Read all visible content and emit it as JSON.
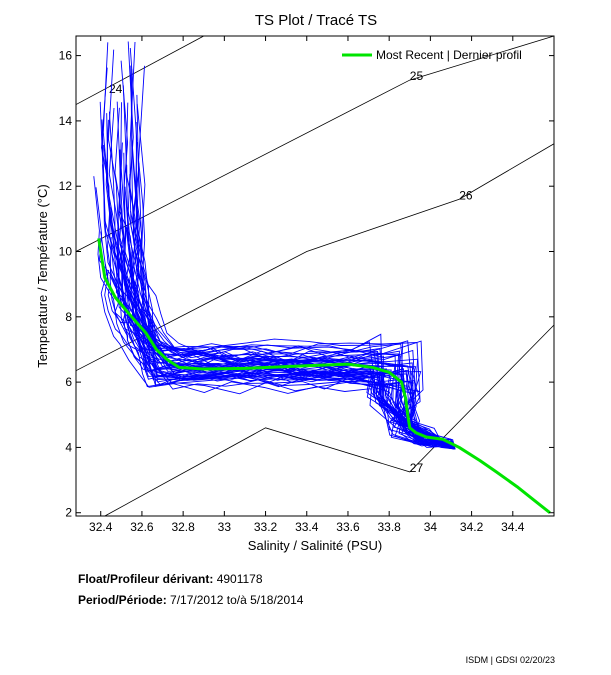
{
  "chart_data": {
    "type": "line",
    "title": "TS Plot / Tracé TS",
    "xlabel": "Salinity / Salinité (PSU)",
    "ylabel": "Temperature / Température (°C)",
    "xlim": [
      32.28,
      34.6
    ],
    "ylim": [
      1.9,
      16.6
    ],
    "xticks": [
      "32.4",
      "32.6",
      "32.8",
      "33",
      "33.2",
      "33.4",
      "33.6",
      "33.8",
      "34",
      "34.2",
      "34.4"
    ],
    "yticks": [
      "2",
      "4",
      "6",
      "8",
      "10",
      "12",
      "14",
      "16"
    ],
    "grid": false,
    "legend_location": "top-right",
    "series": [
      {
        "name": "Most Recent | Dernier profil",
        "color": "#00e400",
        "x": [
          32.39,
          32.42,
          32.47,
          32.55,
          32.62,
          32.67,
          32.72,
          32.78,
          32.9,
          33.1,
          33.4,
          33.6,
          33.72,
          33.8,
          33.86,
          33.88,
          33.89,
          33.9,
          33.93,
          33.98,
          34.06,
          34.14,
          34.24,
          34.32,
          34.42,
          34.5,
          34.58
        ],
        "y": [
          10.4,
          9.2,
          8.6,
          8.0,
          7.5,
          7.0,
          6.7,
          6.45,
          6.4,
          6.42,
          6.5,
          6.55,
          6.45,
          6.3,
          6.0,
          5.5,
          5.0,
          4.6,
          4.45,
          4.32,
          4.25,
          4.0,
          3.6,
          3.25,
          2.8,
          2.4,
          2.0
        ]
      },
      {
        "name": "",
        "color": "#0000ff",
        "note_count": 60
      }
    ],
    "density_contours": [
      {
        "label": "24",
        "x": [
          32.28,
          32.9
        ],
        "y": [
          14.5,
          16.6
        ]
      },
      {
        "label": "25",
        "x": [
          32.28,
          33.9,
          34.6
        ],
        "y": [
          10.0,
          15.25,
          16.6
        ]
      },
      {
        "label": "26",
        "x": [
          32.28,
          33.4,
          34.14,
          34.6
        ],
        "y": [
          6.35,
          10.0,
          11.6,
          13.3
        ]
      },
      {
        "label": "27",
        "x": [
          32.42,
          33.2,
          33.9,
          34.6
        ],
        "y": [
          1.9,
          4.6,
          3.25,
          7.75
        ]
      }
    ]
  },
  "info": {
    "float_label": "Float/Profileur dérivant:",
    "float_id": "4901178",
    "period_label": "Period/Période:",
    "period_value": "7/17/2012  to/à  5/18/2014"
  },
  "footer": "ISDM | GDSI  02/20/23"
}
